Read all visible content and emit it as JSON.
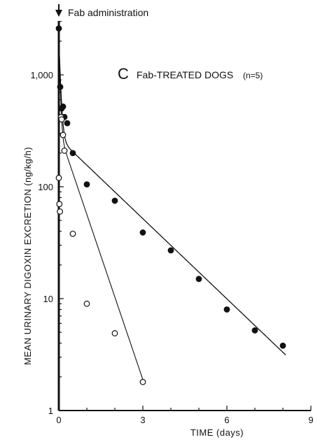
{
  "chart_data": {
    "type": "scatter",
    "title": "Fab-TREATED DOGS",
    "panel_letter": "C",
    "title_suffix": "(n=5)",
    "annotation": "Fab administration",
    "xlabel": "TIME (days)",
    "ylabel": "MEAN URINARY DIGOXIN EXCRETION (ng/kg/h)",
    "xlim": [
      0,
      9
    ],
    "ylim": [
      1,
      3000
    ],
    "y_scale": "log",
    "x_ticks": [
      0,
      3,
      6,
      9
    ],
    "x_tick_labels": [
      "0",
      "3",
      "6",
      "9"
    ],
    "y_ticks": [
      1,
      10,
      100,
      1000
    ],
    "y_tick_labels": [
      "1",
      "10",
      "100",
      "1,000"
    ],
    "grid": false,
    "series": [
      {
        "marker": "filled-circle",
        "color": "#111111",
        "x": [
          0.0,
          0.05,
          0.1,
          0.15,
          0.2,
          0.3,
          0.5,
          1.0,
          2.0,
          3.0,
          4.0,
          5.0,
          6.0,
          7.0,
          8.0
        ],
        "y": [
          2600,
          780,
          500,
          520,
          420,
          370,
          200,
          105,
          75,
          39,
          27,
          15,
          8,
          5.2,
          3.8
        ]
      },
      {
        "marker": "open-circle",
        "color": "#111111",
        "x": [
          0.0,
          0.02,
          0.04,
          0.08,
          0.1,
          0.15,
          0.2,
          0.5,
          1.0,
          2.0,
          3.0
        ],
        "y": [
          120,
          70,
          60,
          420,
          400,
          290,
          210,
          38,
          9.0,
          4.9,
          1.8
        ]
      }
    ]
  }
}
